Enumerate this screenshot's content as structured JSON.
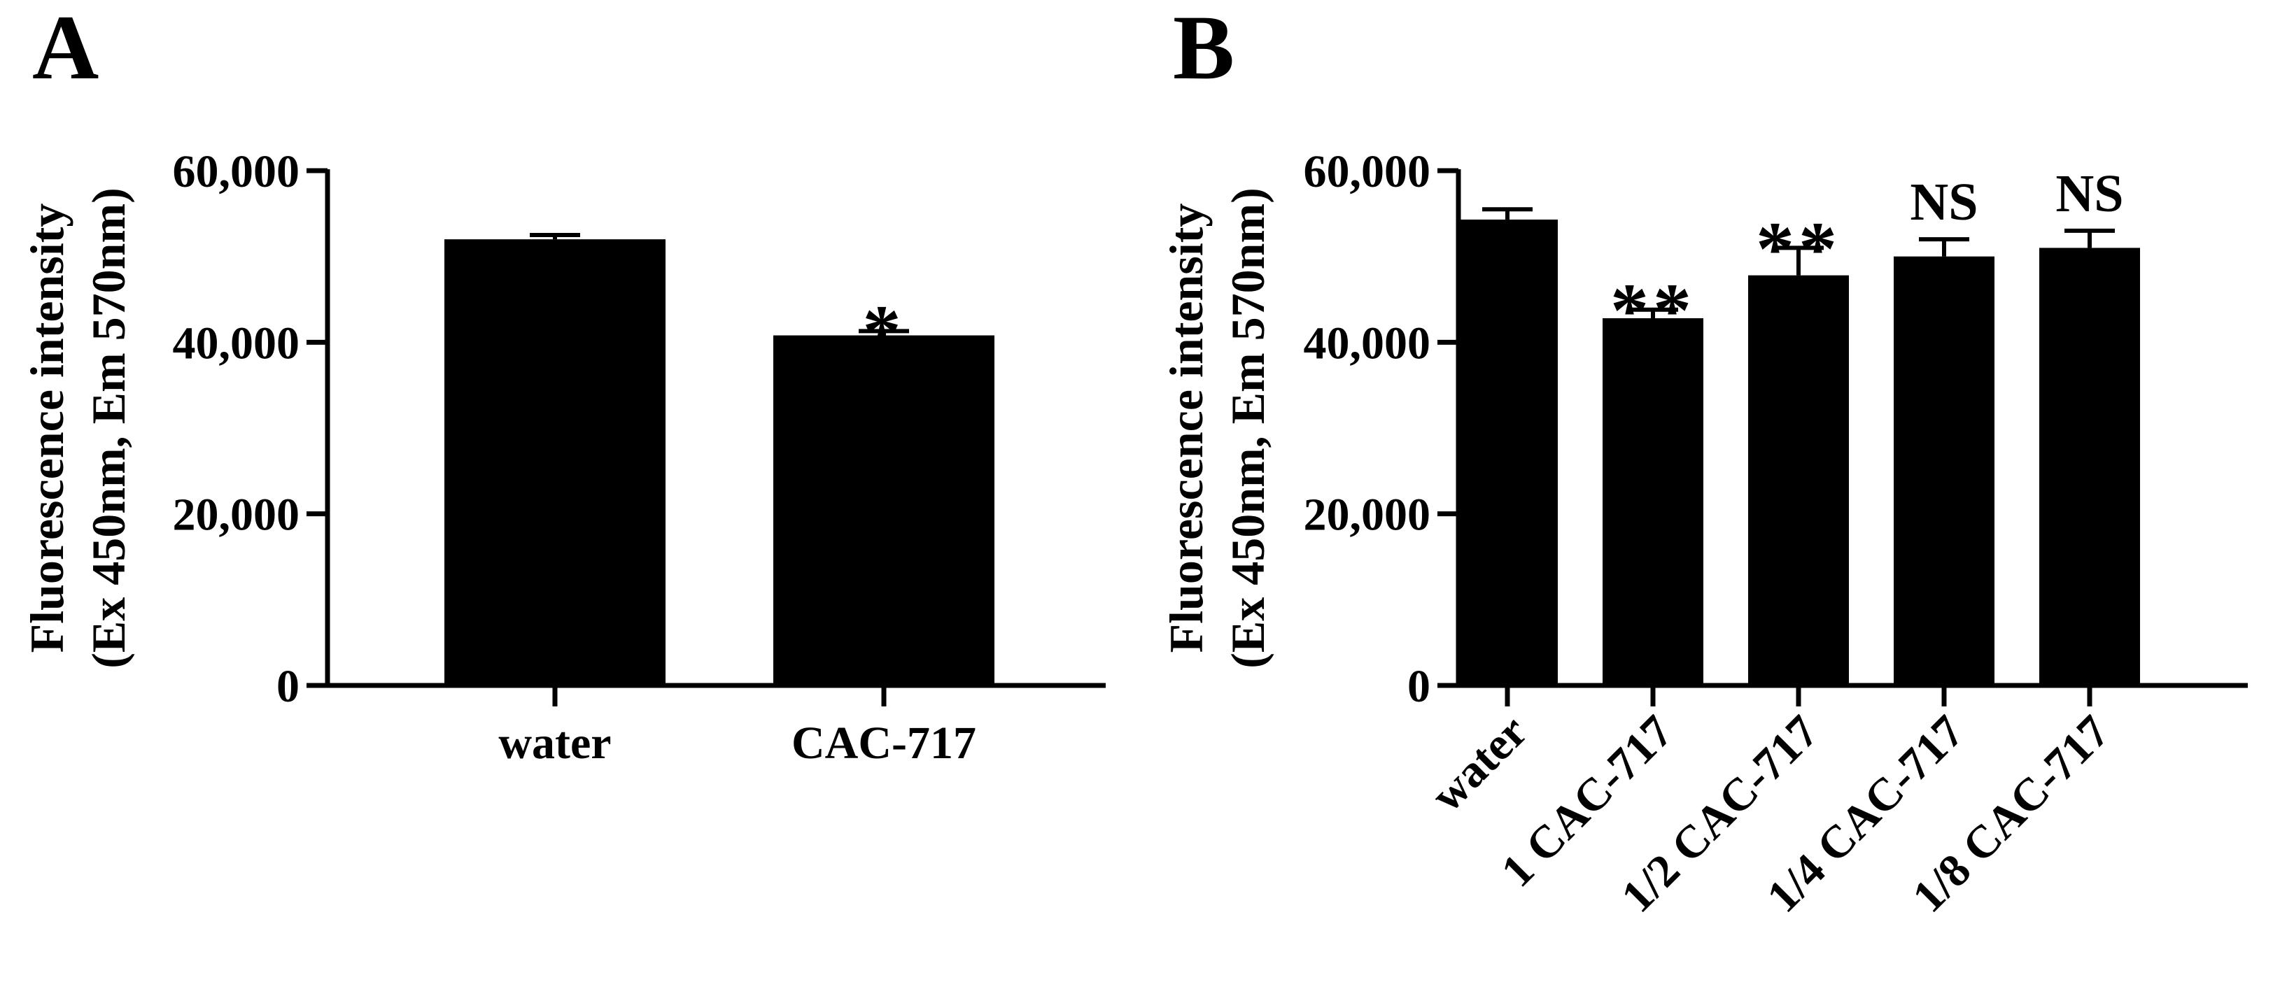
{
  "chart_data": [
    {
      "panel_label": "A",
      "type": "bar",
      "categories": [
        "water",
        "CAC-717"
      ],
      "values": [
        52000,
        40800
      ],
      "errors": [
        500,
        500
      ],
      "significance": [
        "",
        "*"
      ],
      "ylabel_lines": [
        "Fluorescence intensity",
        "(Ex 450nm, Em 570nm)"
      ],
      "ylim": [
        0,
        60000
      ],
      "yticks": [
        0,
        20000,
        40000,
        60000
      ],
      "ytick_labels": [
        "0",
        "20,000",
        "40,000",
        "60,000"
      ],
      "xtick_rotation": 0,
      "bar_color": "#000000",
      "grid": false,
      "legend": "none"
    },
    {
      "panel_label": "B",
      "type": "bar",
      "categories": [
        "water",
        "1 CAC-717",
        "1/2 CAC-717",
        "1/4 CAC-717",
        "1/8 CAC-717"
      ],
      "values": [
        54300,
        42800,
        47800,
        50000,
        51000
      ],
      "errors": [
        1200,
        1000,
        3200,
        2000,
        2000
      ],
      "significance": [
        "",
        "**",
        "**",
        "NS",
        "NS"
      ],
      "ylabel_lines": [
        "Fluorescence intensity",
        "(Ex 450nm, Em 570nm)"
      ],
      "ylim": [
        0,
        60000
      ],
      "yticks": [
        0,
        20000,
        40000,
        60000
      ],
      "ytick_labels": [
        "0",
        "20,000",
        "40,000",
        "60,000"
      ],
      "xtick_rotation": -45,
      "bar_color": "#000000",
      "grid": false,
      "legend": "none"
    }
  ]
}
